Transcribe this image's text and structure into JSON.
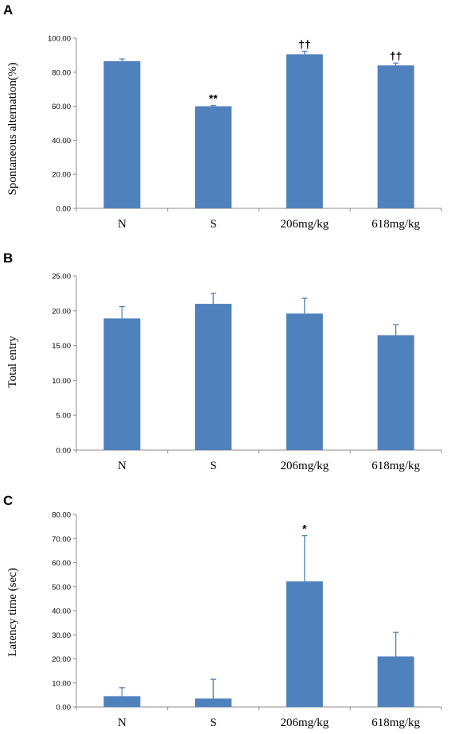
{
  "chart_data": [
    {
      "type": "bar",
      "panel": "A",
      "ylabel": "Spontaneous alternation(%)",
      "xlabel": "",
      "categories": [
        "N",
        "S",
        "206mg/kg",
        "618mg/kg"
      ],
      "values": [
        86.5,
        60.0,
        90.5,
        84.0
      ],
      "errors": [
        1.3,
        0.5,
        1.8,
        1.4
      ],
      "annotations": [
        "",
        "**",
        "††",
        "††"
      ],
      "ylim": [
        0,
        100
      ],
      "yticks": [
        0,
        20,
        40,
        60,
        80,
        100
      ],
      "ytick_labels": [
        "0.00",
        "20.00",
        "40.00",
        "60.00",
        "80.00",
        "100.00"
      ],
      "bar_color": "#4f81bd",
      "grid": false
    },
    {
      "type": "bar",
      "panel": "B",
      "ylabel": "Total entry",
      "xlabel": "",
      "categories": [
        "N",
        "S",
        "206mg/kg",
        "618mg/kg"
      ],
      "values": [
        18.9,
        21.0,
        19.6,
        16.5
      ],
      "errors": [
        1.7,
        1.5,
        2.2,
        1.5
      ],
      "annotations": [
        "",
        "",
        "",
        ""
      ],
      "ylim": [
        0,
        25
      ],
      "yticks": [
        0,
        5,
        10,
        15,
        20,
        25
      ],
      "ytick_labels": [
        "0.00",
        "5.00",
        "10.00",
        "15.00",
        "20.00",
        "25.00"
      ],
      "bar_color": "#4f81bd",
      "grid": false
    },
    {
      "type": "bar",
      "panel": "C",
      "ylabel": "Latency time (sec)",
      "xlabel": "",
      "categories": [
        "N",
        "S",
        "206mg/kg",
        "618mg/kg"
      ],
      "values": [
        4.5,
        3.5,
        52.2,
        21.0
      ],
      "errors": [
        3.5,
        8.0,
        19.0,
        10.0
      ],
      "annotations": [
        "",
        "",
        "*",
        ""
      ],
      "ylim": [
        0,
        80
      ],
      "yticks": [
        0,
        10,
        20,
        30,
        40,
        50,
        60,
        70,
        80
      ],
      "ytick_labels": [
        "0.00",
        "10.00",
        "20.00",
        "30.00",
        "40.00",
        "50.00",
        "60.00",
        "70.00",
        "80.00"
      ],
      "bar_color": "#4f81bd",
      "grid": false
    }
  ]
}
